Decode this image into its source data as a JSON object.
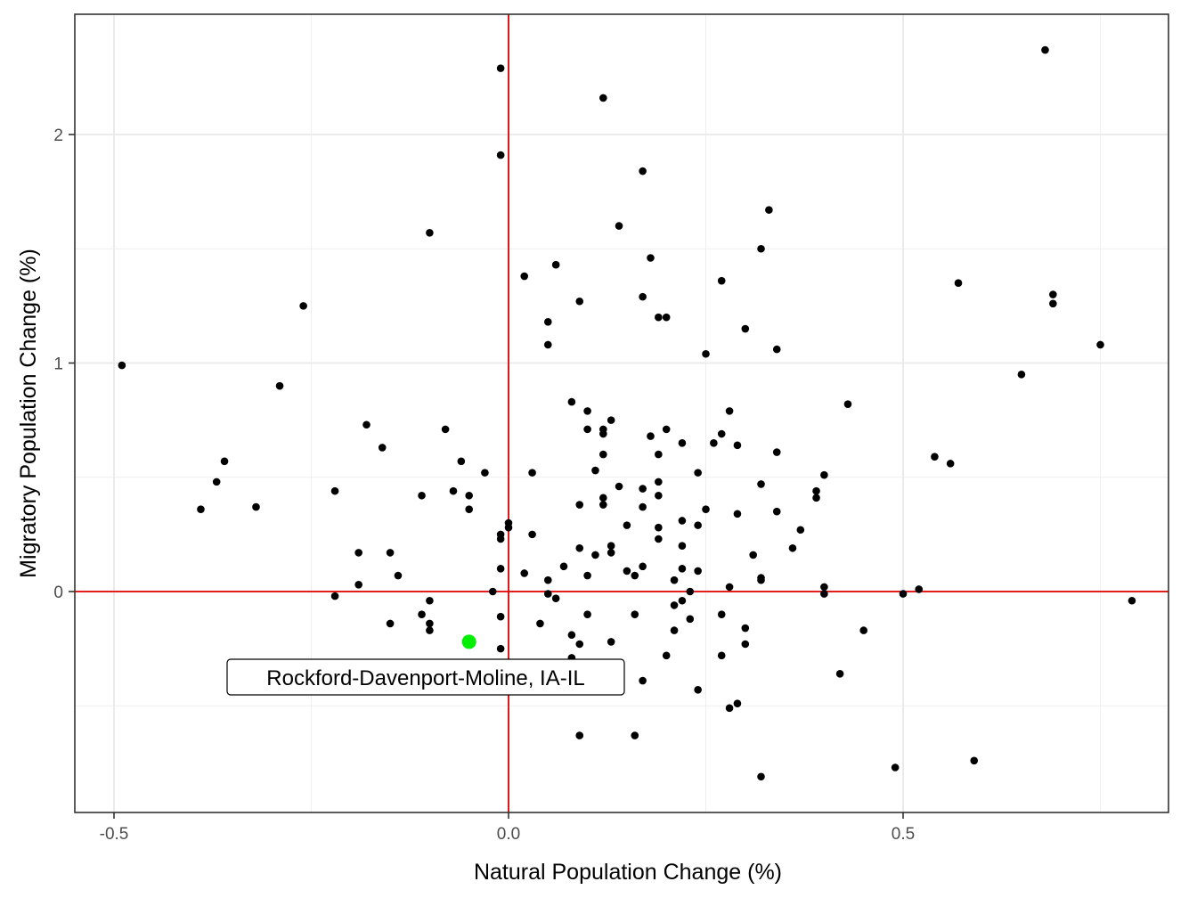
{
  "chart_data": {
    "type": "scatter",
    "title": "",
    "xlabel": "Natural Population Change (%)",
    "ylabel": "Migratory Population Change (%)",
    "xlim": [
      -0.5,
      0.82
    ],
    "ylim": [
      -0.96,
      2.5
    ],
    "x_ticks": [
      -0.5,
      0.0,
      0.5
    ],
    "x_tick_labels": [
      "-0.5",
      "0.0",
      "0.5"
    ],
    "y_ticks": [
      0,
      1,
      2
    ],
    "y_tick_labels": [
      "0",
      "1",
      "2"
    ],
    "grid": true,
    "reference_lines": {
      "x": 0,
      "y": 0,
      "color": "#e00000"
    },
    "colors": {
      "points": "#000000",
      "highlight": "#00ee00",
      "grid": "#ebebeb",
      "panel_border": "#333333"
    },
    "highlight": {
      "x": -0.05,
      "y": -0.22,
      "label": "Rockford-Davenport-Moline, IA-IL"
    },
    "points": [
      [
        -0.49,
        0.99
      ],
      [
        -0.39,
        0.36
      ],
      [
        -0.37,
        0.48
      ],
      [
        -0.36,
        0.57
      ],
      [
        -0.32,
        0.37
      ],
      [
        -0.29,
        0.9
      ],
      [
        -0.26,
        1.25
      ],
      [
        -0.22,
        0.44
      ],
      [
        -0.22,
        -0.02
      ],
      [
        -0.19,
        0.17
      ],
      [
        -0.19,
        0.03
      ],
      [
        -0.18,
        0.73
      ],
      [
        -0.16,
        0.63
      ],
      [
        -0.15,
        0.17
      ],
      [
        -0.15,
        -0.14
      ],
      [
        -0.14,
        0.07
      ],
      [
        -0.11,
        0.42
      ],
      [
        -0.11,
        -0.1
      ],
      [
        -0.1,
        1.57
      ],
      [
        -0.1,
        -0.04
      ],
      [
        -0.1,
        -0.14
      ],
      [
        -0.1,
        -0.17
      ],
      [
        -0.08,
        0.71
      ],
      [
        -0.07,
        0.44
      ],
      [
        -0.06,
        0.57
      ],
      [
        -0.05,
        0.42
      ],
      [
        -0.05,
        0.36
      ],
      [
        -0.03,
        0.52
      ],
      [
        -0.02,
        0.0
      ],
      [
        -0.01,
        2.29
      ],
      [
        -0.01,
        1.91
      ],
      [
        -0.01,
        0.25
      ],
      [
        -0.01,
        0.23
      ],
      [
        -0.01,
        0.1
      ],
      [
        -0.01,
        -0.11
      ],
      [
        -0.01,
        -0.25
      ],
      [
        0.0,
        0.3
      ],
      [
        0.0,
        0.28
      ],
      [
        0.02,
        1.38
      ],
      [
        0.02,
        0.08
      ],
      [
        0.03,
        0.52
      ],
      [
        0.03,
        0.25
      ],
      [
        0.04,
        -0.14
      ],
      [
        0.05,
        1.18
      ],
      [
        0.05,
        1.08
      ],
      [
        0.05,
        0.05
      ],
      [
        0.05,
        -0.01
      ],
      [
        0.06,
        1.43
      ],
      [
        0.06,
        -0.03
      ],
      [
        0.07,
        0.11
      ],
      [
        0.08,
        0.83
      ],
      [
        0.08,
        -0.19
      ],
      [
        0.08,
        -0.29
      ],
      [
        0.09,
        1.27
      ],
      [
        0.09,
        0.38
      ],
      [
        0.09,
        0.19
      ],
      [
        0.09,
        -0.23
      ],
      [
        0.09,
        -0.63
      ],
      [
        0.1,
        0.79
      ],
      [
        0.1,
        0.71
      ],
      [
        0.1,
        0.07
      ],
      [
        0.1,
        -0.1
      ],
      [
        0.11,
        0.53
      ],
      [
        0.11,
        0.16
      ],
      [
        0.12,
        2.16
      ],
      [
        0.12,
        0.71
      ],
      [
        0.12,
        0.69
      ],
      [
        0.12,
        0.6
      ],
      [
        0.12,
        0.41
      ],
      [
        0.12,
        0.38
      ],
      [
        0.13,
        0.75
      ],
      [
        0.13,
        0.2
      ],
      [
        0.13,
        0.17
      ],
      [
        0.13,
        -0.22
      ],
      [
        0.14,
        1.6
      ],
      [
        0.14,
        0.46
      ],
      [
        0.15,
        0.29
      ],
      [
        0.15,
        0.09
      ],
      [
        0.16,
        0.07
      ],
      [
        0.16,
        -0.1
      ],
      [
        0.16,
        -0.63
      ],
      [
        0.17,
        1.84
      ],
      [
        0.17,
        1.29
      ],
      [
        0.17,
        0.45
      ],
      [
        0.17,
        0.37
      ],
      [
        0.17,
        0.11
      ],
      [
        0.17,
        -0.39
      ],
      [
        0.18,
        1.46
      ],
      [
        0.18,
        0.68
      ],
      [
        0.19,
        1.2
      ],
      [
        0.19,
        0.6
      ],
      [
        0.19,
        0.48
      ],
      [
        0.19,
        0.42
      ],
      [
        0.19,
        0.28
      ],
      [
        0.19,
        0.23
      ],
      [
        0.2,
        1.2
      ],
      [
        0.2,
        0.71
      ],
      [
        0.2,
        -0.28
      ],
      [
        0.21,
        0.05
      ],
      [
        0.21,
        -0.06
      ],
      [
        0.21,
        -0.17
      ],
      [
        0.22,
        0.65
      ],
      [
        0.22,
        0.31
      ],
      [
        0.22,
        0.2
      ],
      [
        0.22,
        0.1
      ],
      [
        0.22,
        -0.04
      ],
      [
        0.23,
        0.0
      ],
      [
        0.23,
        -0.12
      ],
      [
        0.24,
        0.52
      ],
      [
        0.24,
        0.29
      ],
      [
        0.24,
        0.09
      ],
      [
        0.24,
        -0.43
      ],
      [
        0.25,
        1.04
      ],
      [
        0.25,
        0.36
      ],
      [
        0.26,
        0.65
      ],
      [
        0.27,
        1.36
      ],
      [
        0.27,
        0.69
      ],
      [
        0.27,
        -0.1
      ],
      [
        0.27,
        -0.28
      ],
      [
        0.28,
        0.79
      ],
      [
        0.28,
        0.02
      ],
      [
        0.28,
        -0.51
      ],
      [
        0.29,
        0.64
      ],
      [
        0.29,
        0.34
      ],
      [
        0.29,
        -0.49
      ],
      [
        0.3,
        1.15
      ],
      [
        0.3,
        -0.16
      ],
      [
        0.3,
        -0.23
      ],
      [
        0.31,
        0.16
      ],
      [
        0.32,
        1.5
      ],
      [
        0.32,
        0.47
      ],
      [
        0.32,
        0.06
      ],
      [
        0.32,
        0.05
      ],
      [
        0.32,
        -0.81
      ],
      [
        0.33,
        1.67
      ],
      [
        0.34,
        1.06
      ],
      [
        0.34,
        0.61
      ],
      [
        0.34,
        0.35
      ],
      [
        0.36,
        0.19
      ],
      [
        0.37,
        0.27
      ],
      [
        0.39,
        0.44
      ],
      [
        0.39,
        0.41
      ],
      [
        0.4,
        0.51
      ],
      [
        0.4,
        0.02
      ],
      [
        0.4,
        -0.01
      ],
      [
        0.42,
        -0.36
      ],
      [
        0.43,
        0.82
      ],
      [
        0.45,
        -0.17
      ],
      [
        0.49,
        -0.77
      ],
      [
        0.5,
        -0.01
      ],
      [
        0.52,
        0.01
      ],
      [
        0.54,
        0.59
      ],
      [
        0.56,
        0.56
      ],
      [
        0.57,
        1.35
      ],
      [
        0.59,
        -0.74
      ],
      [
        0.65,
        0.95
      ],
      [
        0.68,
        2.37
      ],
      [
        0.69,
        1.3
      ],
      [
        0.69,
        1.26
      ],
      [
        0.75,
        1.08
      ],
      [
        0.79,
        -0.04
      ]
    ]
  }
}
